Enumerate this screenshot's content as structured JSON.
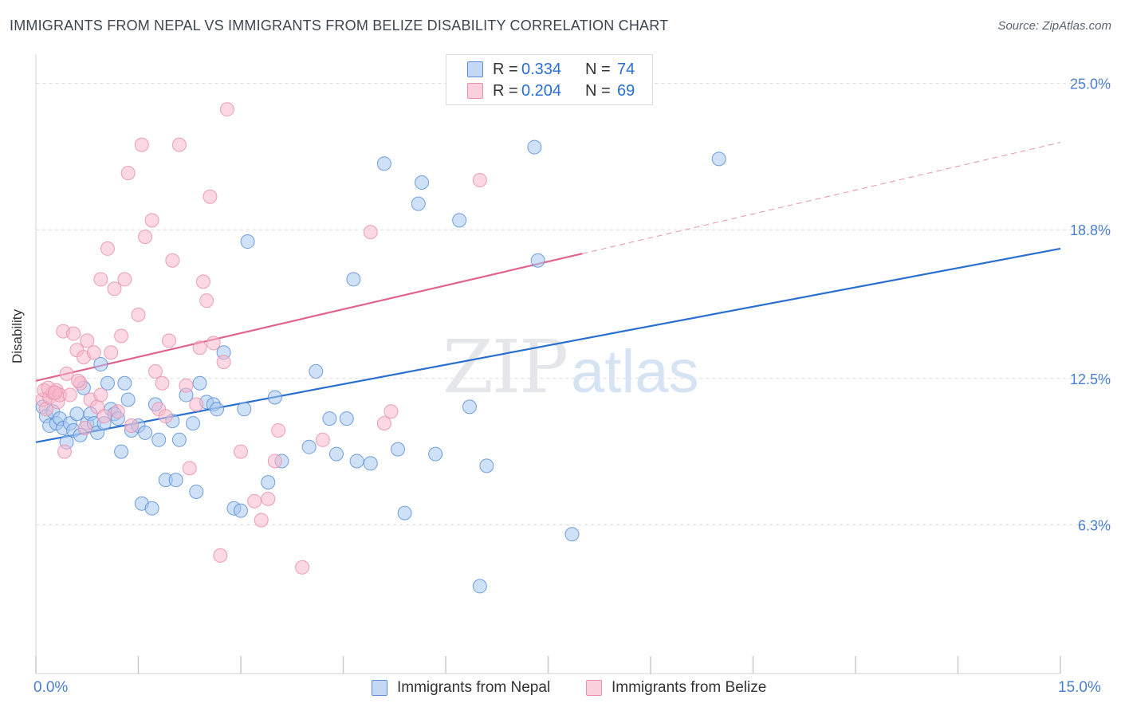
{
  "title": "IMMIGRANTS FROM NEPAL VS IMMIGRANTS FROM BELIZE DISABILITY CORRELATION CHART",
  "source": "Source: ZipAtlas.com",
  "watermark": {
    "zip": "ZIP",
    "atlas": "atlas"
  },
  "legend": {
    "r_label": "R =",
    "n_label": "N =",
    "nepal": {
      "r": "0.334",
      "n": "74"
    },
    "belize": {
      "r": "0.204",
      "n": "69"
    }
  },
  "colors": {
    "nepal_fill": "#a8c8f0",
    "nepal_stroke": "#5a8fd8",
    "nepal_line": "#2a6fcf",
    "belize_fill": "#f8b8cc",
    "belize_stroke": "#e890ac",
    "belize_line": "#e0628e",
    "tick_text": "#4a7fd0",
    "grid": "#dcdcdc"
  },
  "chart_data": {
    "type": "scatter",
    "title": "IMMIGRANTS FROM NEPAL VS IMMIGRANTS FROM BELIZE DISABILITY CORRELATION CHART",
    "xlabel": "",
    "ylabel": "Disability",
    "xlim": [
      0,
      15
    ],
    "ylim": [
      0,
      26
    ],
    "x_tick_labels": [
      "0.0%",
      "15.0%"
    ],
    "y_ticks": [
      6.3,
      12.5,
      18.8,
      25.0
    ],
    "y_tick_labels": [
      "6.3%",
      "12.5%",
      "18.8%",
      "25.0%"
    ],
    "series": [
      {
        "name": "Immigrants from Nepal",
        "trend": {
          "x0": 0,
          "y0": 9.8,
          "x1": 15,
          "y1": 18.0,
          "dashed_from": null
        },
        "points": [
          [
            0.1,
            11.3
          ],
          [
            0.15,
            10.9
          ],
          [
            0.2,
            10.5
          ],
          [
            0.25,
            11.1
          ],
          [
            0.3,
            10.6
          ],
          [
            0.35,
            10.8
          ],
          [
            0.4,
            10.4
          ],
          [
            0.45,
            9.8
          ],
          [
            0.5,
            10.6
          ],
          [
            0.55,
            10.3
          ],
          [
            0.6,
            11.0
          ],
          [
            0.65,
            10.1
          ],
          [
            0.7,
            12.1
          ],
          [
            0.75,
            10.6
          ],
          [
            0.8,
            11.0
          ],
          [
            0.85,
            10.6
          ],
          [
            0.9,
            10.2
          ],
          [
            0.95,
            13.1
          ],
          [
            1.0,
            10.6
          ],
          [
            1.05,
            12.3
          ],
          [
            1.1,
            11.2
          ],
          [
            1.15,
            11.0
          ],
          [
            1.2,
            10.8
          ],
          [
            1.25,
            9.4
          ],
          [
            1.3,
            12.3
          ],
          [
            1.35,
            11.6
          ],
          [
            1.4,
            10.3
          ],
          [
            1.5,
            10.5
          ],
          [
            1.55,
            7.2
          ],
          [
            1.6,
            10.2
          ],
          [
            1.7,
            7.0
          ],
          [
            1.75,
            11.4
          ],
          [
            1.8,
            9.9
          ],
          [
            1.9,
            8.2
          ],
          [
            2.0,
            10.7
          ],
          [
            2.05,
            8.2
          ],
          [
            2.1,
            9.9
          ],
          [
            2.2,
            11.8
          ],
          [
            2.3,
            10.6
          ],
          [
            2.35,
            7.7
          ],
          [
            2.4,
            12.3
          ],
          [
            2.5,
            11.5
          ],
          [
            2.6,
            11.4
          ],
          [
            2.65,
            11.2
          ],
          [
            2.75,
            13.6
          ],
          [
            2.9,
            7.0
          ],
          [
            3.0,
            6.9
          ],
          [
            3.05,
            11.2
          ],
          [
            3.1,
            18.3
          ],
          [
            3.4,
            8.1
          ],
          [
            3.5,
            11.7
          ],
          [
            3.6,
            9.0
          ],
          [
            4.0,
            9.6
          ],
          [
            4.1,
            12.8
          ],
          [
            4.3,
            10.8
          ],
          [
            4.4,
            9.3
          ],
          [
            4.55,
            10.8
          ],
          [
            4.65,
            16.7
          ],
          [
            4.7,
            9.0
          ],
          [
            4.9,
            8.9
          ],
          [
            5.1,
            21.6
          ],
          [
            5.3,
            9.5
          ],
          [
            5.4,
            6.8
          ],
          [
            5.6,
            19.9
          ],
          [
            5.65,
            20.8
          ],
          [
            5.85,
            9.3
          ],
          [
            6.2,
            19.2
          ],
          [
            6.35,
            11.3
          ],
          [
            6.5,
            3.7
          ],
          [
            6.6,
            8.8
          ],
          [
            7.3,
            22.3
          ],
          [
            7.35,
            17.5
          ],
          [
            7.85,
            5.9
          ],
          [
            10.0,
            21.8
          ]
        ]
      },
      {
        "name": "Immigrants from Belize",
        "trend": {
          "x0": 0,
          "y0": 12.4,
          "x1": 15,
          "y1": 22.5,
          "dashed_from": 8.0
        },
        "points": [
          [
            0.1,
            11.6
          ],
          [
            0.12,
            12.0
          ],
          [
            0.15,
            11.2
          ],
          [
            0.2,
            11.7
          ],
          [
            0.25,
            11.9
          ],
          [
            0.3,
            12.0
          ],
          [
            0.32,
            11.5
          ],
          [
            0.35,
            11.8
          ],
          [
            0.4,
            14.5
          ],
          [
            0.45,
            12.7
          ],
          [
            0.5,
            11.8
          ],
          [
            0.55,
            14.4
          ],
          [
            0.6,
            13.7
          ],
          [
            0.65,
            12.3
          ],
          [
            0.7,
            13.4
          ],
          [
            0.75,
            14.1
          ],
          [
            0.8,
            11.6
          ],
          [
            0.85,
            13.6
          ],
          [
            0.9,
            11.3
          ],
          [
            0.95,
            16.7
          ],
          [
            1.0,
            10.9
          ],
          [
            1.05,
            18.0
          ],
          [
            1.1,
            13.6
          ],
          [
            1.15,
            16.3
          ],
          [
            1.2,
            11.1
          ],
          [
            1.25,
            14.3
          ],
          [
            1.3,
            16.7
          ],
          [
            1.35,
            21.2
          ],
          [
            1.4,
            10.5
          ],
          [
            1.5,
            15.2
          ],
          [
            1.55,
            22.4
          ],
          [
            1.6,
            18.5
          ],
          [
            1.7,
            19.2
          ],
          [
            1.75,
            12.8
          ],
          [
            1.8,
            11.2
          ],
          [
            1.85,
            12.3
          ],
          [
            1.9,
            10.9
          ],
          [
            1.95,
            14.1
          ],
          [
            2.0,
            17.5
          ],
          [
            2.1,
            22.4
          ],
          [
            2.2,
            12.2
          ],
          [
            2.25,
            8.7
          ],
          [
            2.35,
            11.4
          ],
          [
            2.4,
            13.8
          ],
          [
            2.45,
            16.6
          ],
          [
            2.5,
            15.8
          ],
          [
            2.55,
            20.2
          ],
          [
            2.6,
            14.0
          ],
          [
            2.7,
            5.0
          ],
          [
            2.75,
            13.2
          ],
          [
            2.8,
            23.9
          ],
          [
            3.0,
            9.4
          ],
          [
            3.2,
            7.3
          ],
          [
            3.3,
            6.5
          ],
          [
            3.4,
            7.4
          ],
          [
            3.5,
            9.0
          ],
          [
            3.55,
            10.3
          ],
          [
            3.9,
            4.5
          ],
          [
            4.2,
            9.9
          ],
          [
            4.9,
            18.7
          ],
          [
            5.1,
            10.6
          ],
          [
            5.2,
            11.1
          ],
          [
            6.5,
            20.9
          ],
          [
            0.18,
            12.1
          ],
          [
            0.28,
            11.9
          ],
          [
            0.42,
            9.4
          ],
          [
            0.62,
            12.4
          ],
          [
            0.72,
            10.4
          ],
          [
            0.95,
            11.8
          ]
        ]
      }
    ]
  },
  "bottom_legend": {
    "nepal": "Immigrants from Nepal",
    "belize": "Immigrants from Belize"
  },
  "y_axis_label": "Disability"
}
